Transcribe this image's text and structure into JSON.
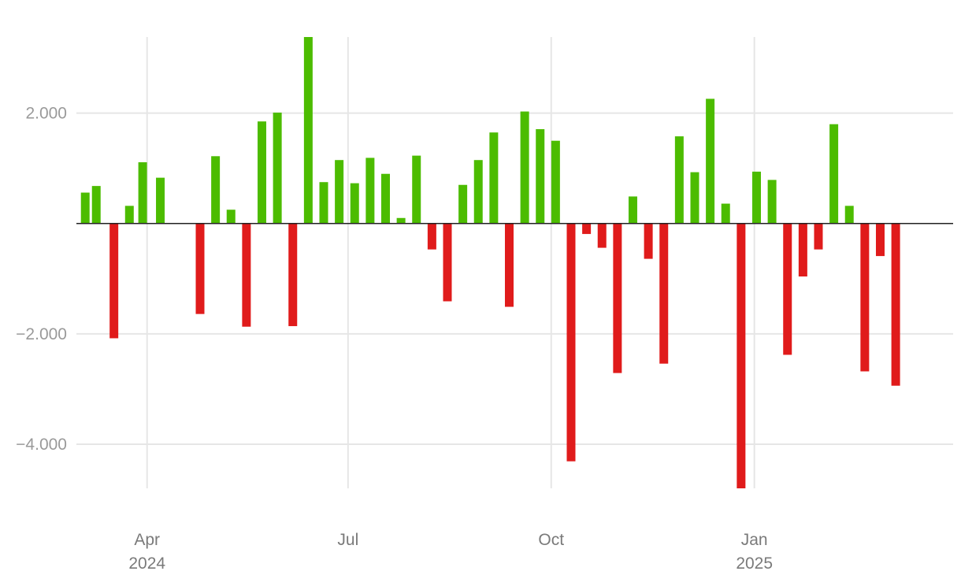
{
  "chart_data": {
    "type": "bar",
    "title": "",
    "xlabel": "",
    "ylabel": "",
    "ylim": [
      -4800,
      3380
    ],
    "grid": true,
    "legend": "none",
    "colors": {
      "positive": "#4cbc00",
      "negative": "#e01b1b",
      "zero_line": "#222222",
      "grid": "#e6e6e6"
    },
    "y_ticks": [
      {
        "value": 2000,
        "label": "2.000"
      },
      {
        "value": -2000,
        "label": "−2.000"
      },
      {
        "value": -4000,
        "label": "−4.000"
      }
    ],
    "x_ticks": [
      {
        "date": "2024-03-31",
        "line1": "Apr",
        "line2": "2024"
      },
      {
        "date": "2024-06-30",
        "line1": "Jul",
        "line2": ""
      },
      {
        "date": "2024-09-30",
        "line1": "Oct",
        "line2": ""
      },
      {
        "date": "2024-12-31",
        "line1": "Jan",
        "line2": "2025"
      }
    ],
    "x_range": [
      "2024-02-28",
      "2025-03-31"
    ],
    "bars": [
      {
        "date": "2024-03-03",
        "value": 560
      },
      {
        "date": "2024-03-08",
        "value": 680
      },
      {
        "date": "2024-03-16",
        "value": -2080
      },
      {
        "date": "2024-03-23",
        "value": 320
      },
      {
        "date": "2024-03-29",
        "value": 1110
      },
      {
        "date": "2024-04-06",
        "value": 830
      },
      {
        "date": "2024-04-24",
        "value": -1640
      },
      {
        "date": "2024-05-01",
        "value": 1220
      },
      {
        "date": "2024-05-08",
        "value": 250
      },
      {
        "date": "2024-05-15",
        "value": -1870
      },
      {
        "date": "2024-05-22",
        "value": 1850
      },
      {
        "date": "2024-05-29",
        "value": 2010
      },
      {
        "date": "2024-06-05",
        "value": -1860
      },
      {
        "date": "2024-06-12",
        "value": 3380
      },
      {
        "date": "2024-06-19",
        "value": 750
      },
      {
        "date": "2024-06-26",
        "value": 1150
      },
      {
        "date": "2024-07-03",
        "value": 730
      },
      {
        "date": "2024-07-10",
        "value": 1190
      },
      {
        "date": "2024-07-17",
        "value": 900
      },
      {
        "date": "2024-07-24",
        "value": 100
      },
      {
        "date": "2024-07-31",
        "value": 1230
      },
      {
        "date": "2024-08-07",
        "value": -470
      },
      {
        "date": "2024-08-14",
        "value": -1410
      },
      {
        "date": "2024-08-21",
        "value": 700
      },
      {
        "date": "2024-08-28",
        "value": 1150
      },
      {
        "date": "2024-09-04",
        "value": 1650
      },
      {
        "date": "2024-09-11",
        "value": -1510
      },
      {
        "date": "2024-09-18",
        "value": 2030
      },
      {
        "date": "2024-09-25",
        "value": 1710
      },
      {
        "date": "2024-10-02",
        "value": 1500
      },
      {
        "date": "2024-10-09",
        "value": -4310
      },
      {
        "date": "2024-10-16",
        "value": -190
      },
      {
        "date": "2024-10-23",
        "value": -440
      },
      {
        "date": "2024-10-30",
        "value": -2710
      },
      {
        "date": "2024-11-06",
        "value": 490
      },
      {
        "date": "2024-11-13",
        "value": -640
      },
      {
        "date": "2024-11-20",
        "value": -2540
      },
      {
        "date": "2024-11-27",
        "value": 1580
      },
      {
        "date": "2024-12-04",
        "value": 930
      },
      {
        "date": "2024-12-11",
        "value": 2260
      },
      {
        "date": "2024-12-18",
        "value": 360
      },
      {
        "date": "2024-12-25",
        "value": -4800
      },
      {
        "date": "2025-01-01",
        "value": 940
      },
      {
        "date": "2025-01-08",
        "value": 790
      },
      {
        "date": "2025-01-15",
        "value": -2380
      },
      {
        "date": "2025-01-22",
        "value": -960
      },
      {
        "date": "2025-01-29",
        "value": -470
      },
      {
        "date": "2025-02-05",
        "value": 1800
      },
      {
        "date": "2025-02-12",
        "value": 320
      },
      {
        "date": "2025-02-19",
        "value": -2680
      },
      {
        "date": "2025-02-26",
        "value": -590
      },
      {
        "date": "2025-03-05",
        "value": -2940
      }
    ]
  }
}
